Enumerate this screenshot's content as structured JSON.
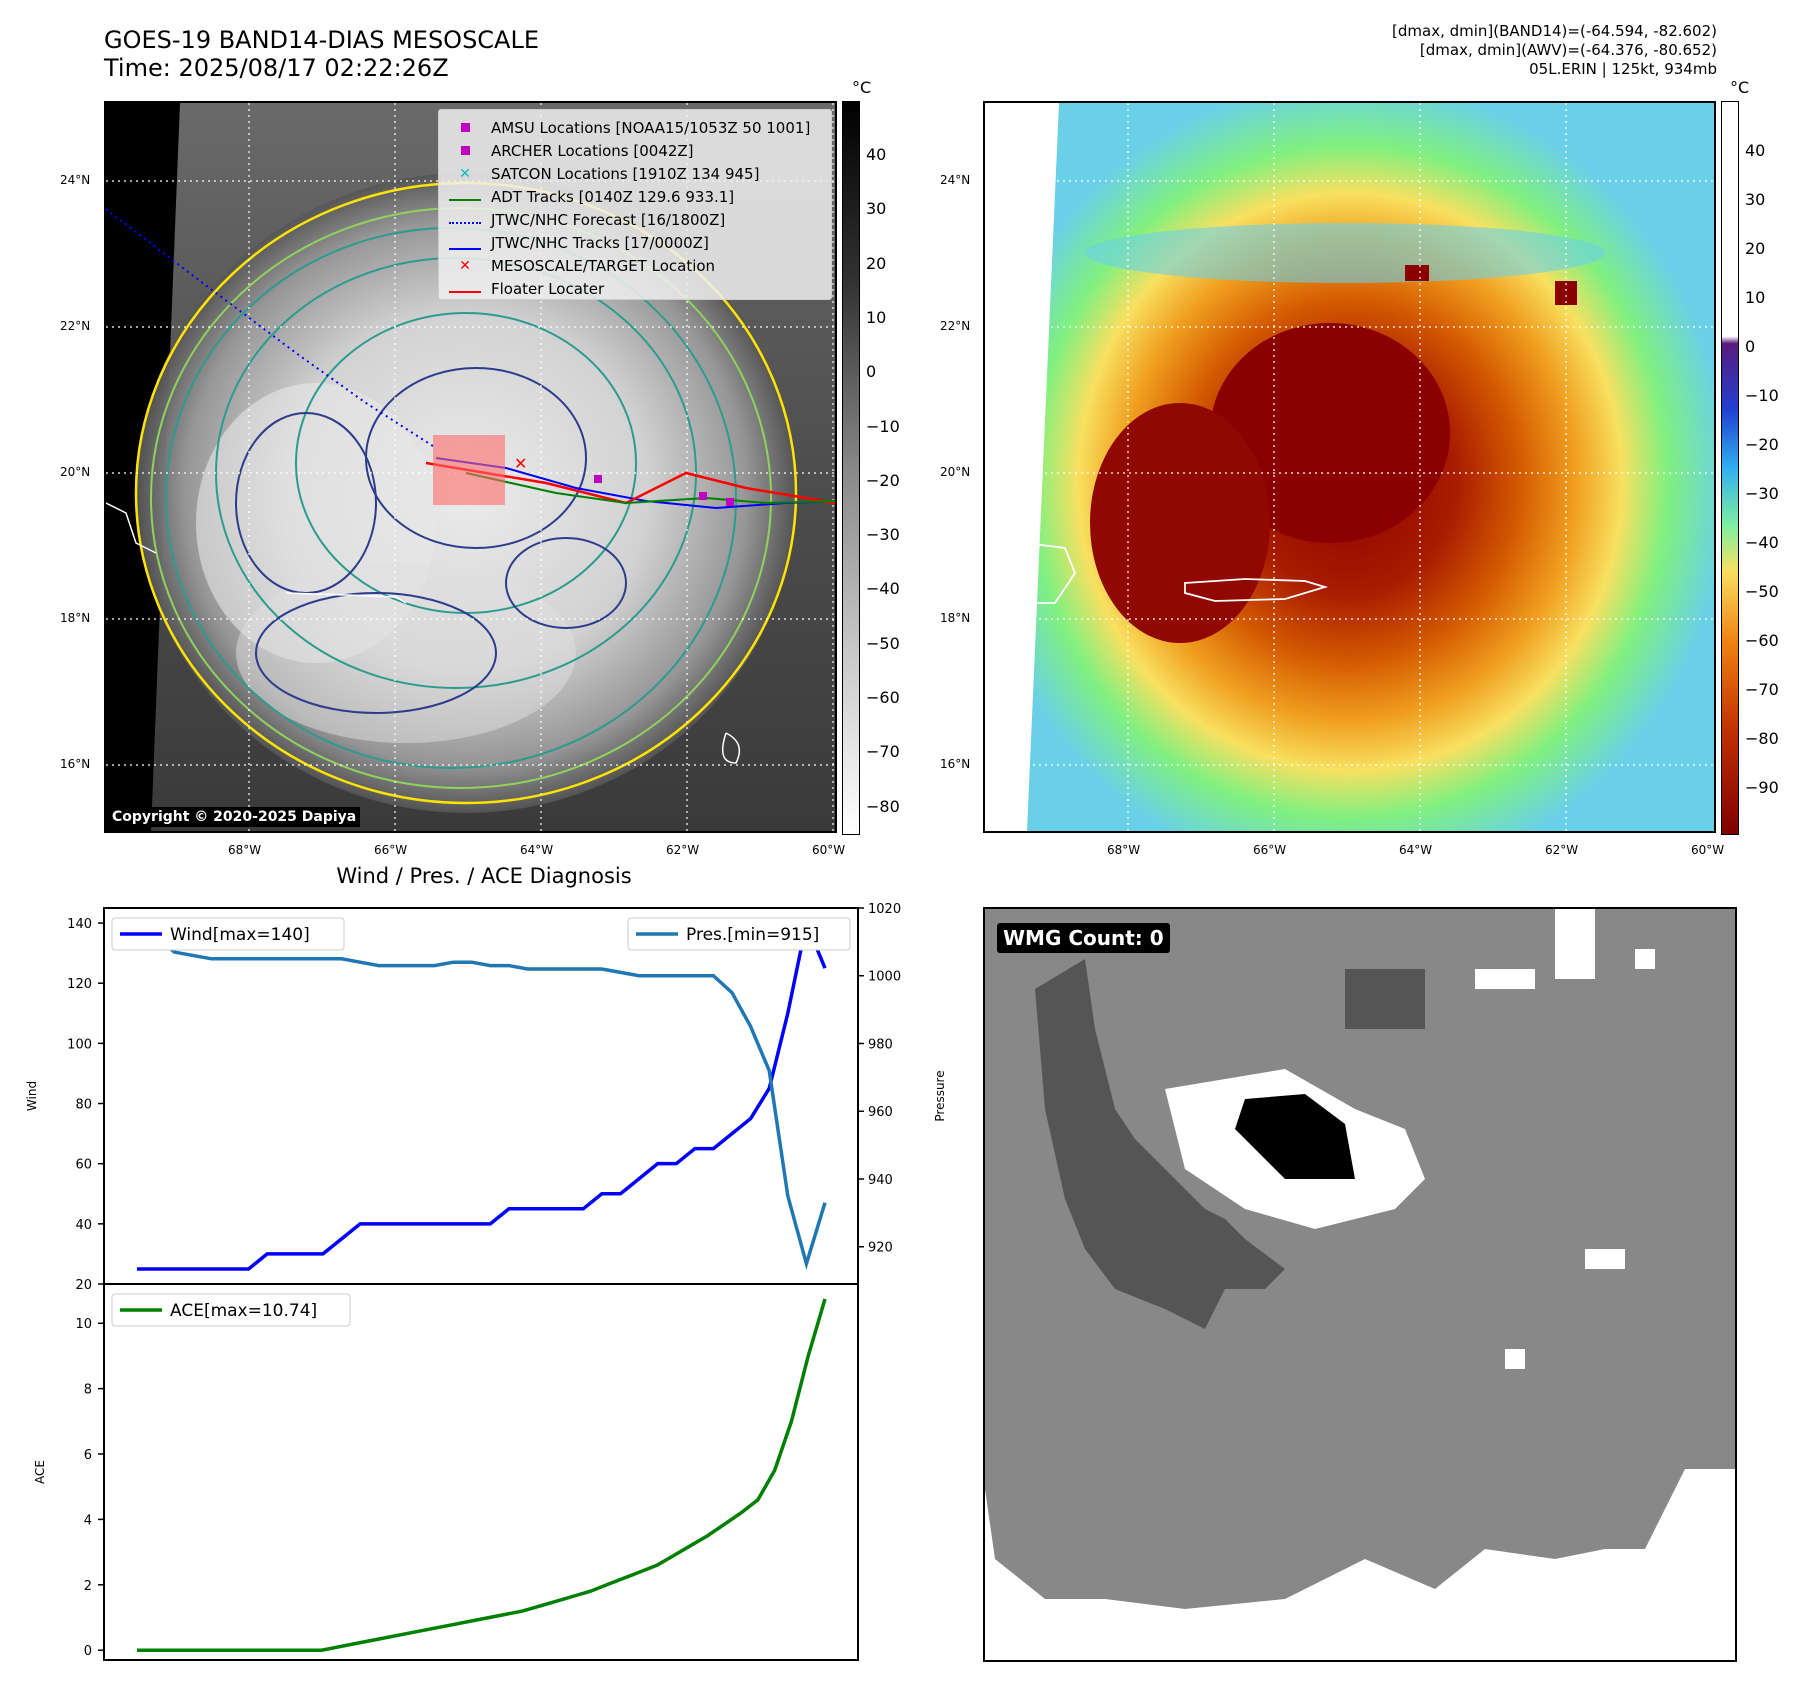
{
  "header": {
    "title_line1": "GOES-19 BAND14-DIAS MESOSCALE",
    "title_line2": "Time: 2025/08/17 02:22:26Z",
    "stats_line1": "[dmax, dmin](BAND14)=(-64.594, -82.602)",
    "stats_line2": "[dmax, dmin](AWV)=(-64.376, -80.652)",
    "stats_line3": "05L.ERIN | 125kt, 934mb"
  },
  "map_axes": {
    "lat_ticks": [
      "24°N",
      "22°N",
      "20°N",
      "18°N",
      "16°N"
    ],
    "lon_ticks": [
      "68°W",
      "66°W",
      "64°W",
      "62°W",
      "60°W"
    ]
  },
  "ir_panel": {
    "legend": [
      {
        "label": "AMSU Locations [NOAA15/1053Z 50 1001]",
        "marker": "square",
        "color": "#c000c0"
      },
      {
        "label": "ARCHER Locations [0042Z]",
        "marker": "square",
        "color": "#c000c0"
      },
      {
        "label": "SATCON Locations [1910Z 134 945]",
        "marker": "x",
        "color": "#00c0c0"
      },
      {
        "label": "ADT Tracks [0140Z 129.6 933.1]",
        "marker": "line",
        "color": "#008000"
      },
      {
        "label": "JTWC/NHC Forecast [16/1800Z]",
        "marker": "dotted",
        "color": "#0000ff"
      },
      {
        "label": "JTWC/NHC Tracks [17/0000Z]",
        "marker": "line-dot",
        "color": "#0000ff"
      },
      {
        "label": "MESOSCALE/TARGET Location",
        "marker": "x",
        "color": "#ff0000"
      },
      {
        "label": "Floater Locater",
        "marker": "line",
        "color": "#ff0000"
      }
    ],
    "copyright": "Copyright © 2020-2025 Dapiya",
    "colorbar_unit": "°C",
    "colorbar_ticks": [
      "40",
      "30",
      "20",
      "10",
      "0",
      "−10",
      "−20",
      "−30",
      "−40",
      "−50",
      "−60",
      "−70",
      "−80"
    ]
  },
  "color_panel": {
    "colorbar_unit": "°C",
    "colorbar_ticks": [
      "40",
      "30",
      "20",
      "10",
      "0",
      "−10",
      "−20",
      "−30",
      "−40",
      "−50",
      "−60",
      "−70",
      "−80",
      "−90"
    ]
  },
  "wmg_panel": {
    "label": "WMG Count: 0"
  },
  "chart_data": [
    {
      "type": "line",
      "title": "Wind / Pres. / ACE Diagnosis",
      "ylabel": "Wind",
      "y2label": "Pressure",
      "ylim": [
        20,
        145
      ],
      "y2lim": [
        909,
        1020
      ],
      "y_ticks": [
        "140",
        "120",
        "100",
        "80",
        "60",
        "40",
        "20"
      ],
      "y2_ticks": [
        "1020",
        "1000",
        "980",
        "960",
        "940",
        "920"
      ],
      "grid": false,
      "series": [
        {
          "name": "Wind[max=140]",
          "axis": "left",
          "color": "#0000ff",
          "values": [
            25,
            25,
            25,
            25,
            25,
            25,
            25,
            30,
            30,
            30,
            30,
            35,
            40,
            40,
            40,
            40,
            40,
            40,
            40,
            40,
            45,
            45,
            45,
            45,
            45,
            50,
            50,
            55,
            60,
            60,
            65,
            65,
            70,
            75,
            85,
            110,
            140,
            125
          ]
        },
        {
          "name": "Pres.[min=915]",
          "axis": "right",
          "color": "#1f77b4",
          "values": [
            1012,
            1012,
            1007,
            1006,
            1005,
            1005,
            1005,
            1005,
            1005,
            1005,
            1005,
            1005,
            1004,
            1003,
            1003,
            1003,
            1003,
            1004,
            1004,
            1003,
            1003,
            1002,
            1002,
            1002,
            1002,
            1002,
            1001,
            1000,
            1000,
            1000,
            1000,
            1000,
            995,
            985,
            972,
            935,
            915,
            933
          ]
        }
      ],
      "legend": [
        "top-left",
        "top-right"
      ]
    },
    {
      "type": "line",
      "ylabel": "ACE",
      "ylim": [
        -0.3,
        11.2
      ],
      "y_ticks": [
        "10",
        "8",
        "6",
        "4",
        "2",
        "0"
      ],
      "series": [
        {
          "name": "ACE[max=10.74]",
          "color": "#008000",
          "values": [
            0,
            0,
            0,
            0,
            0,
            0,
            0,
            0,
            0,
            0,
            0,
            0,
            0.1,
            0.2,
            0.3,
            0.4,
            0.5,
            0.6,
            0.7,
            0.8,
            0.9,
            1.0,
            1.1,
            1.2,
            1.35,
            1.5,
            1.65,
            1.8,
            2.0,
            2.2,
            2.4,
            2.6,
            2.9,
            3.2,
            3.5,
            3.85,
            4.2,
            4.6,
            5.5,
            7.0,
            9.0,
            10.74
          ]
        }
      ],
      "legend": "top-left"
    }
  ]
}
